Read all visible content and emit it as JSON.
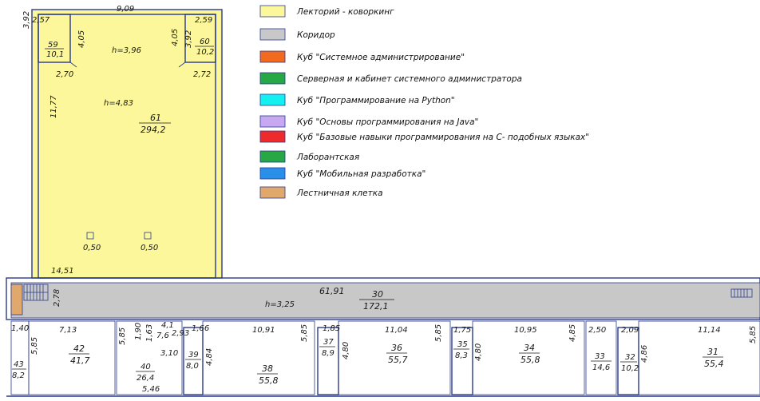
{
  "legend": [
    {
      "label": "Лекторий - коворкинг",
      "color": "#fbf79a"
    },
    {
      "label": "Коридор",
      "color": "#c8c8c8"
    },
    {
      "label": "Куб \"Системное администрирование\"",
      "color": "#f26a1e"
    },
    {
      "label": "Серверная и кабинет системного администратора",
      "color": "#28a745"
    },
    {
      "label": "Куб \"Программирование на Python\"",
      "color": "#14f0f0"
    },
    {
      "label": "Куб \"Основы программирования на Java\"",
      "color": "#c8a8f0"
    },
    {
      "label": "Куб \"Базовые навыки программирования на C- подобных языках\"",
      "color": "#ef2a2a"
    },
    {
      "label": "Лаборантская",
      "color": "#28a745"
    },
    {
      "label": "Куб \"Мобильная разработка\"",
      "color": "#2a8fe8"
    },
    {
      "label": "Лестничная клетка",
      "color": "#e0a86a"
    }
  ],
  "hall": {
    "dims": [
      "3,92",
      "2,57",
      "9,09",
      "2,59",
      "3,92",
      "4,05",
      "4,05",
      "2,70",
      "2,72",
      "11,77",
      "14,51",
      "0,50",
      "0,50"
    ],
    "height_main": "h=4,83",
    "height_gallery": "h=3,96",
    "room_num": "61",
    "room_area": "294,2",
    "small_left_num": "59",
    "small_left_area": "10,1",
    "small_right_num": "60",
    "small_right_area": "10,2"
  },
  "corridor": {
    "height": "h=3,25",
    "length": "61,91",
    "width": "2,78",
    "room_num": "30",
    "room_area": "172,1"
  },
  "rooms": {
    "r43": {
      "num": "43",
      "area": "8,2",
      "dims": [
        "1,40",
        "5,85"
      ]
    },
    "r42": {
      "num": "42",
      "area": "41,7",
      "dims": [
        "7,13"
      ]
    },
    "r40": {
      "num": "40",
      "area": "26,4",
      "dims": [
        "5,85",
        "1,90",
        "1,63",
        "4,1",
        "7,6",
        "2,93",
        "3,10",
        "5,46"
      ]
    },
    "r39": {
      "num": "39",
      "area": "8,0",
      "dims": [
        "1,66",
        "4,84"
      ]
    },
    "r38": {
      "num": "38",
      "area": "55,8",
      "dims": [
        "10,91",
        "5,85"
      ]
    },
    "r37": {
      "num": "37",
      "area": "8,9",
      "dims": [
        "1,85",
        "4,80"
      ]
    },
    "r36": {
      "num": "36",
      "area": "55,7",
      "dims": [
        "11,04",
        "5,85"
      ]
    },
    "r35": {
      "num": "35",
      "area": "8,3",
      "dims": [
        "1,75",
        "4,80"
      ]
    },
    "r34": {
      "num": "34",
      "area": "55,8",
      "dims": [
        "10,95",
        "4,85"
      ]
    },
    "r33": {
      "num": "33",
      "area": "14,6",
      "dims": [
        "2,50"
      ]
    },
    "r32": {
      "num": "32",
      "area": "10,2",
      "dims": [
        "2,09",
        "4,86"
      ]
    },
    "r31": {
      "num": "31",
      "area": "55,4",
      "dims": [
        "11,14",
        "5,85"
      ]
    }
  }
}
